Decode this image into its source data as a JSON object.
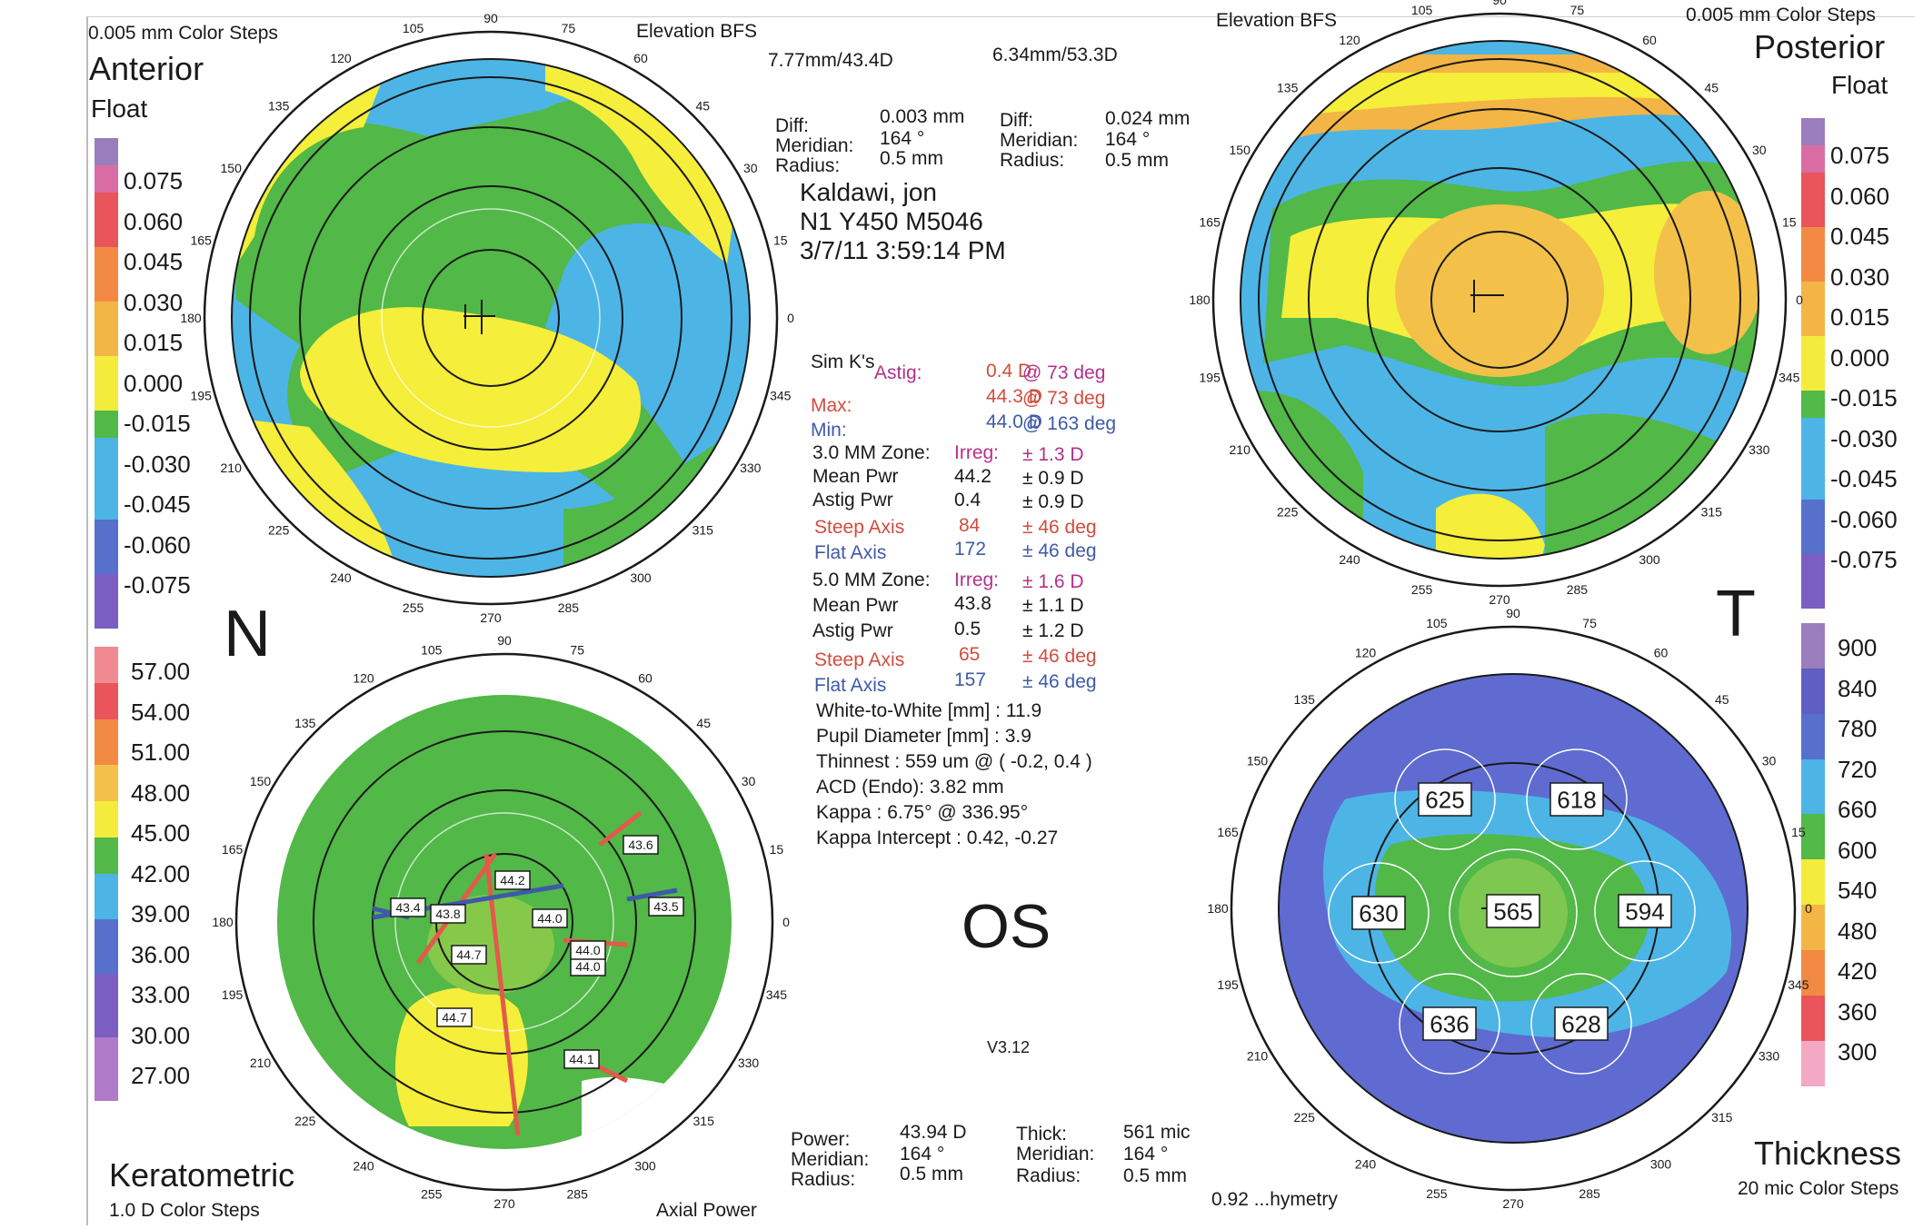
{
  "anterior": {
    "steps": "0.005 mm Color Steps",
    "bfs_label": "Elevation BFS",
    "title": "Anterior",
    "subtitle": "Float",
    "bfs_value": "7.77mm/43.4D",
    "scale_values": [
      "0.075",
      "0.060",
      "0.045",
      "0.030",
      "0.015",
      "0.000",
      "-0.015",
      "-0.030",
      "-0.045",
      "-0.060",
      "-0.075"
    ],
    "diff_label": "Diff:",
    "diff_value": "0.003 mm",
    "meridian_label": "Meridian:",
    "meridian_value": "164 °",
    "radius_label": "Radius:",
    "radius_value": "0.5 mm"
  },
  "posterior": {
    "steps": "0.005 mm Color Steps",
    "bfs_label": "Elevation BFS",
    "title": "Posterior",
    "subtitle": "Float",
    "bfs_value": "6.34mm/53.3D",
    "scale_values": [
      "0.075",
      "0.060",
      "0.045",
      "0.030",
      "0.015",
      "0.000",
      "-0.015",
      "-0.030",
      "-0.045",
      "-0.060",
      "-0.075"
    ],
    "diff_label": "Diff:",
    "diff_value": "0.024 mm",
    "meridian_label": "Meridian:",
    "meridian_value": "164 °",
    "radius_label": "Radius:",
    "radius_value": "0.5 mm"
  },
  "keratometric": {
    "title": "Keratometric",
    "steps": "1.0 D Color Steps",
    "map_type": "Axial Power",
    "scale_values": [
      "57.00",
      "54.00",
      "51.00",
      "48.00",
      "45.00",
      "42.00",
      "39.00",
      "36.00",
      "33.00",
      "30.00",
      "27.00"
    ],
    "power_label": "Power:",
    "power_value": "43.94 D",
    "meridian_label": "Meridian:",
    "meridian_value": "164 °",
    "radius_label": "Radius:",
    "radius_value": "0.5 mm",
    "map_labels": [
      "43.6",
      "43.5",
      "44.2",
      "43.4",
      "43.8",
      "44.0",
      "44.7",
      "44.0",
      "44.0",
      "44.7",
      "44.1"
    ]
  },
  "thickness": {
    "title": "Thickness",
    "steps": "20 mic Color Steps",
    "map_type": "0.92 ...hymetry",
    "scale_values": [
      "900",
      "840",
      "780",
      "720",
      "660",
      "600",
      "540",
      "480",
      "420",
      "360",
      "300"
    ],
    "thick_label": "Thick:",
    "thick_value": "561 mic",
    "meridian_label": "Meridian:",
    "meridian_value": "164 °",
    "radius_label": "Radius:",
    "radius_value": "0.5 mm",
    "zones": [
      "625",
      "618",
      "630",
      "565",
      "594",
      "636",
      "628"
    ]
  },
  "patient": {
    "name": "Kaldawi, jon",
    "id": "N1 Y450 M5046",
    "datetime": "3/7/11 3:59:14 PM",
    "eye": "OS",
    "version": "V3.12"
  },
  "orientation": {
    "left": "N",
    "right": "T"
  },
  "axis_degrees": [
    "0",
    "15",
    "30",
    "45",
    "60",
    "75",
    "90",
    "105",
    "120",
    "135",
    "150",
    "165",
    "180",
    "195",
    "210",
    "225",
    "240",
    "255",
    "270",
    "285",
    "300",
    "315",
    "330",
    "345"
  ],
  "stats": {
    "simk_label": "Sim K's",
    "astig_label": "Astig:",
    "astig_value": "0.4 D",
    "astig_axis": "@ 73 deg",
    "max_label": "Max:",
    "max_value": "44.3 D",
    "max_axis": "@ 73 deg",
    "min_label": "Min:",
    "min_value": "44.0 D",
    "min_axis": "@ 163 deg",
    "z3_label": "3.0 MM Zone:",
    "z3_irreg_label": "Irreg:",
    "z3_irreg_value": "± 1.3 D",
    "z3_mean_label": "Mean Pwr",
    "z3_mean_value": "44.2",
    "z3_mean_sd": "± 0.9 D",
    "z3_astig_label": "Astig Pwr",
    "z3_astig_value": "0.4",
    "z3_astig_sd": "± 0.9 D",
    "z3_steep_label": "Steep Axis",
    "z3_steep_value": "84",
    "z3_steep_sd": "± 46 deg",
    "z3_flat_label": "Flat Axis",
    "z3_flat_value": "172",
    "z3_flat_sd": "± 46 deg",
    "z5_label": "5.0 MM Zone:",
    "z5_irreg_label": "Irreg:",
    "z5_irreg_value": "± 1.6 D",
    "z5_mean_label": "Mean Pwr",
    "z5_mean_value": "43.8",
    "z5_mean_sd": "± 1.1 D",
    "z5_astig_label": "Astig Pwr",
    "z5_astig_value": "0.5",
    "z5_astig_sd": "± 1.2 D",
    "z5_steep_label": "Steep Axis",
    "z5_steep_value": "65",
    "z5_steep_sd": "± 46 deg",
    "z5_flat_label": "Flat Axis",
    "z5_flat_value": "157",
    "z5_flat_sd": "± 46 deg",
    "wtw": "White-to-White [mm] : 11.9",
    "pupil": "Pupil Diameter [mm] :  3.9",
    "thinnest": "Thinnest : 559 um @ ( -0.2, 0.4 )",
    "acd": "ACD (Endo): 3.82 mm",
    "kappa": "Kappa : 6.75° @ 336.95°",
    "kappa_intercept": "Kappa Intercept : 0.42, -0.27"
  },
  "colors": {
    "yellow": "#f5ee3a",
    "green": "#52b848",
    "cyan": "#4cb5e6",
    "blue": "#5566cc",
    "orange": "#f1b744",
    "red": "#e25a4a",
    "purple": "#7b5ec2"
  }
}
